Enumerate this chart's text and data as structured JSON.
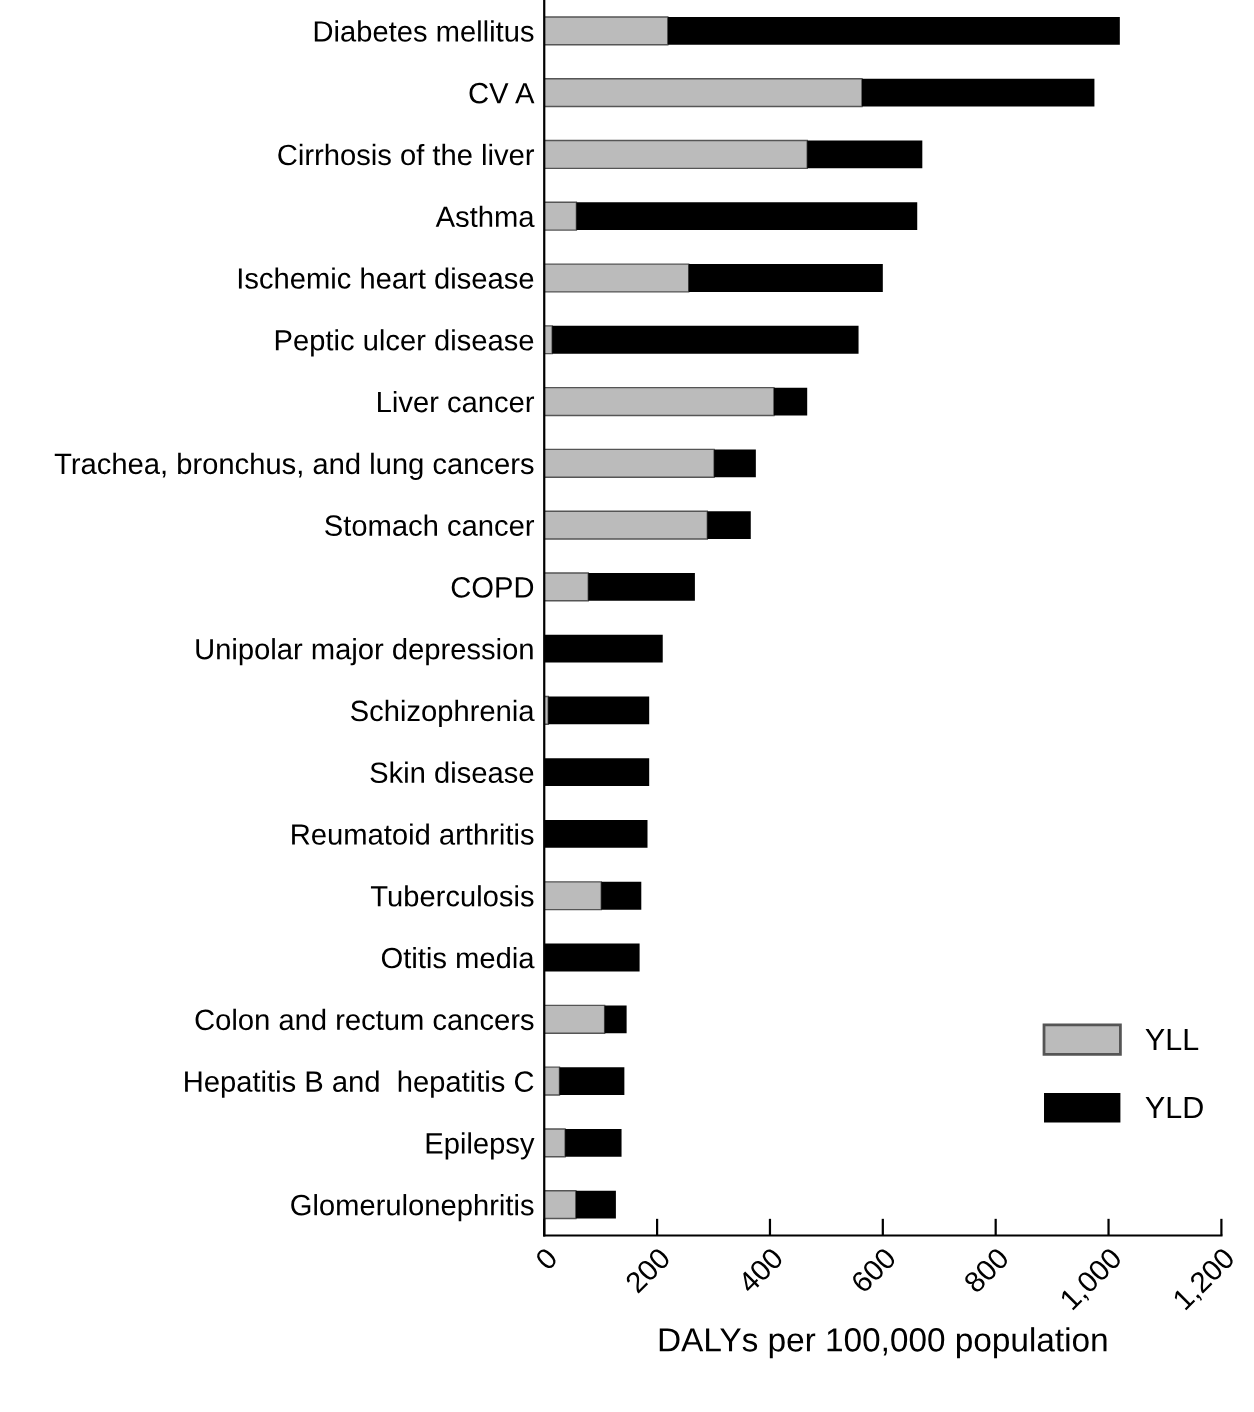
{
  "chart_data": {
    "type": "bar",
    "orientation": "horizontal",
    "stacked": true,
    "categories": [
      "Diabetes mellitus",
      "CV A",
      "Cirrhosis of the liver",
      "Asthma",
      "Ischemic heart disease",
      "Peptic ulcer disease",
      "Liver cancer",
      "Trachea, bronchus, and lung cancers",
      "Stomach cancer",
      "COPD",
      "Unipolar major depression",
      "Schizophrenia",
      "Skin disease",
      "Reumatoid arthritis",
      "Tuberculosis",
      "Otitis media",
      "Colon and rectum cancers",
      "Hepatitis B and  hepatitis C",
      "Epilepsy",
      "Glomerulonephritis"
    ],
    "series": [
      {
        "name": "YLL",
        "color": "#bbbbbb",
        "values": [
          219,
          563,
          466,
          57,
          256,
          14,
          407,
          301,
          289,
          78,
          0,
          7,
          0,
          0,
          101,
          0,
          107,
          27,
          37,
          56
        ]
      },
      {
        "name": "YLD",
        "color": "#000000",
        "values": [
          801,
          412,
          204,
          604,
          344,
          543,
          59,
          74,
          77,
          189,
          210,
          179,
          186,
          183,
          71,
          169,
          39,
          115,
          100,
          71
        ]
      }
    ],
    "xlabel": "DALYs per 100,000 population",
    "xlim": [
      0,
      1200
    ],
    "xticks": [
      0,
      {
        "value": 200,
        "label": "200"
      },
      {
        "value": 400,
        "label": "400"
      },
      {
        "value": 600,
        "label": "600"
      },
      {
        "value": 800,
        "label": "800"
      },
      {
        "value": 1000,
        "label": "1,000"
      },
      {
        "value": 1200,
        "label": "1,200"
      }
    ],
    "legend": "bottom right",
    "grid": false
  }
}
